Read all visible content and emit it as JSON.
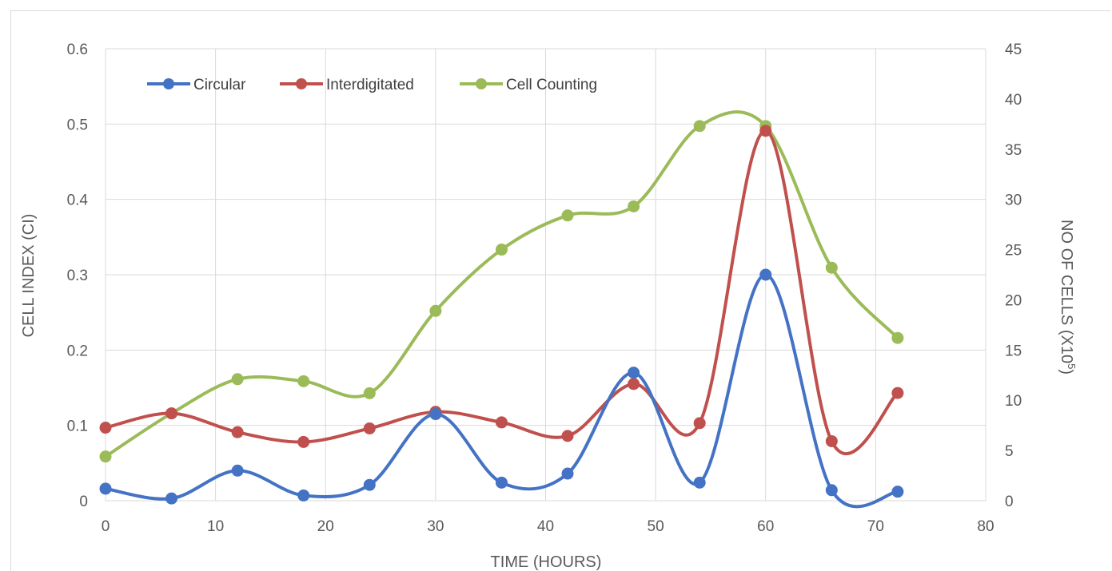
{
  "chart_data": {
    "type": "line",
    "title": "",
    "xlabel": "TIME (HOURS)",
    "ylabel": "CELL INDEX (CI)",
    "y2label_prefix": "NO OF CELLS (X10",
    "y2label_sup": "5",
    "y2label_suffix": ")",
    "xlim": [
      0,
      80
    ],
    "ylim": [
      0,
      0.6
    ],
    "y2lim": [
      0,
      45
    ],
    "x_ticks": [
      "0",
      "10",
      "20",
      "30",
      "40",
      "50",
      "60",
      "70",
      "80"
    ],
    "y_ticks": [
      "0",
      "0.1",
      "0.2",
      "0.3",
      "0.4",
      "0.5",
      "0.6"
    ],
    "y2_ticks": [
      "0",
      "5",
      "10",
      "15",
      "20",
      "25",
      "30",
      "35",
      "40",
      "45"
    ],
    "grid": true,
    "legend_position": "top-left",
    "x": [
      0,
      6,
      12,
      18,
      24,
      30,
      36,
      42,
      48,
      54,
      60,
      66,
      72
    ],
    "series": [
      {
        "name": "Circular",
        "color": "#4472c4",
        "axis": "left",
        "values": [
          0.016,
          0.003,
          0.04,
          0.007,
          0.021,
          0.115,
          0.024,
          0.036,
          0.17,
          0.024,
          0.3,
          0.014,
          0.012
        ]
      },
      {
        "name": "Interdigitated",
        "color": "#c0504d",
        "axis": "left",
        "values": [
          0.097,
          0.116,
          0.091,
          0.078,
          0.096,
          0.118,
          0.104,
          0.086,
          0.155,
          0.103,
          0.491,
          0.079,
          0.143
        ]
      },
      {
        "name": "Cell Counting",
        "color": "#9bbb59",
        "axis": "right",
        "values": [
          4.4,
          8.7,
          12.1,
          11.9,
          10.7,
          18.9,
          25.0,
          28.4,
          29.3,
          37.3,
          37.3,
          23.2,
          16.2
        ]
      }
    ]
  }
}
